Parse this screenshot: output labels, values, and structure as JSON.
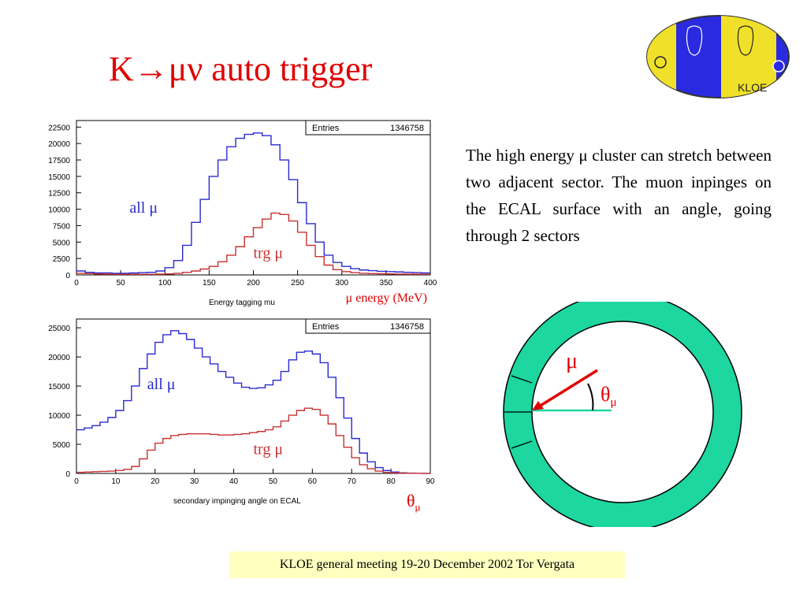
{
  "slide": {
    "title": "K→μν auto trigger",
    "description": "The high energy μ cluster can stretch between two adjacent sector. The muon inpinges on the ECAL surface with an angle, going through 2 sectors",
    "footer": "KLOE general meeting 19-20 December 2002   Tor Vergata",
    "logo_text": "KLOE",
    "ring_labels": {
      "mu": "μ",
      "theta": "θ",
      "theta_sub": "μ"
    }
  },
  "colors": {
    "title": "#e00000",
    "all_series": "#2a2ad0",
    "trg_series": "#c83232",
    "ring": "#1dd6a0",
    "footer_bg": "#ffffc0"
  },
  "chart_data": [
    {
      "type": "line",
      "stats_label": "Entries",
      "stats_value": "1346758",
      "xlabel": "Energy  tagging mu",
      "unit_label": "μ energy (MeV)",
      "xlim": [
        0,
        400
      ],
      "ylim": [
        0,
        23500
      ],
      "xticks": [
        0,
        50,
        100,
        150,
        200,
        250,
        300,
        350,
        400
      ],
      "yticks": [
        0,
        2500,
        5000,
        7500,
        10000,
        12500,
        15000,
        17500,
        20000,
        22500
      ],
      "x": [
        0,
        10,
        20,
        30,
        40,
        50,
        60,
        70,
        80,
        90,
        100,
        110,
        120,
        130,
        140,
        150,
        160,
        170,
        180,
        190,
        200,
        210,
        220,
        230,
        240,
        250,
        260,
        270,
        280,
        290,
        300,
        310,
        320,
        330,
        340,
        350,
        360,
        370,
        380,
        390,
        400
      ],
      "series": [
        {
          "name": "all μ",
          "color": "#2a2ad0",
          "label_at": [
            60,
            9500
          ],
          "values": [
            600,
            400,
            300,
            300,
            250,
            250,
            300,
            350,
            400,
            600,
            1100,
            2200,
            4500,
            8000,
            11500,
            15000,
            17500,
            19500,
            20800,
            21400,
            21600,
            21200,
            19800,
            17500,
            14500,
            11000,
            7800,
            5000,
            3000,
            1900,
            1300,
            950,
            750,
            650,
            550,
            500,
            450,
            400,
            350,
            300,
            300
          ]
        },
        {
          "name": "trg μ",
          "color": "#c83232",
          "label_at": [
            200,
            2600
          ],
          "values": [
            250,
            200,
            150,
            120,
            100,
            100,
            100,
            100,
            100,
            120,
            150,
            250,
            400,
            600,
            900,
            1300,
            2000,
            3000,
            4300,
            5800,
            7200,
            8500,
            9400,
            9200,
            8200,
            6500,
            4500,
            2800,
            1500,
            800,
            500,
            350,
            250,
            200,
            180,
            150,
            130,
            120,
            110,
            100,
            100
          ]
        }
      ]
    },
    {
      "type": "line",
      "stats_label": "Entries",
      "stats_value": "1346758",
      "xlabel": "secondary impinging angle on ECAL",
      "unit_label": "θ",
      "unit_sub": "μ",
      "xlim": [
        0,
        90
      ],
      "ylim": [
        0,
        26500
      ],
      "xticks": [
        0,
        10,
        20,
        30,
        40,
        50,
        60,
        70,
        80,
        90
      ],
      "yticks": [
        0,
        5000,
        10000,
        15000,
        20000,
        25000
      ],
      "x": [
        0,
        2,
        4,
        6,
        8,
        10,
        12,
        14,
        16,
        18,
        20,
        22,
        24,
        26,
        28,
        30,
        32,
        34,
        36,
        38,
        40,
        42,
        44,
        46,
        48,
        50,
        52,
        54,
        56,
        58,
        60,
        62,
        64,
        66,
        68,
        70,
        72,
        74,
        76,
        78,
        80,
        82,
        84,
        86,
        88,
        90
      ],
      "series": [
        {
          "name": "all μ",
          "color": "#2a2ad0",
          "label_at": [
            18,
            14500
          ],
          "values": [
            7500,
            7800,
            8200,
            8800,
            9600,
            10800,
            12500,
            15000,
            18000,
            20500,
            22500,
            23800,
            24500,
            24000,
            23000,
            21500,
            20000,
            18800,
            17500,
            16500,
            15500,
            14800,
            14600,
            14700,
            15200,
            16000,
            17500,
            19500,
            20800,
            21000,
            20500,
            19000,
            16500,
            13000,
            9500,
            6000,
            3500,
            2000,
            1000,
            500,
            250,
            100,
            50,
            20,
            10,
            0
          ]
        },
        {
          "name": "trg μ",
          "color": "#c83232",
          "label_at": [
            45,
            3300
          ],
          "values": [
            200,
            250,
            300,
            350,
            400,
            500,
            700,
            1200,
            2500,
            4000,
            5200,
            6000,
            6500,
            6700,
            6800,
            6800,
            6800,
            6700,
            6600,
            6600,
            6700,
            6800,
            7000,
            7200,
            7500,
            8000,
            9000,
            10000,
            10800,
            11200,
            11000,
            10000,
            8500,
            6500,
            4500,
            2700,
            1500,
            800,
            400,
            200,
            100,
            50,
            30,
            20,
            10,
            0
          ]
        }
      ]
    }
  ]
}
